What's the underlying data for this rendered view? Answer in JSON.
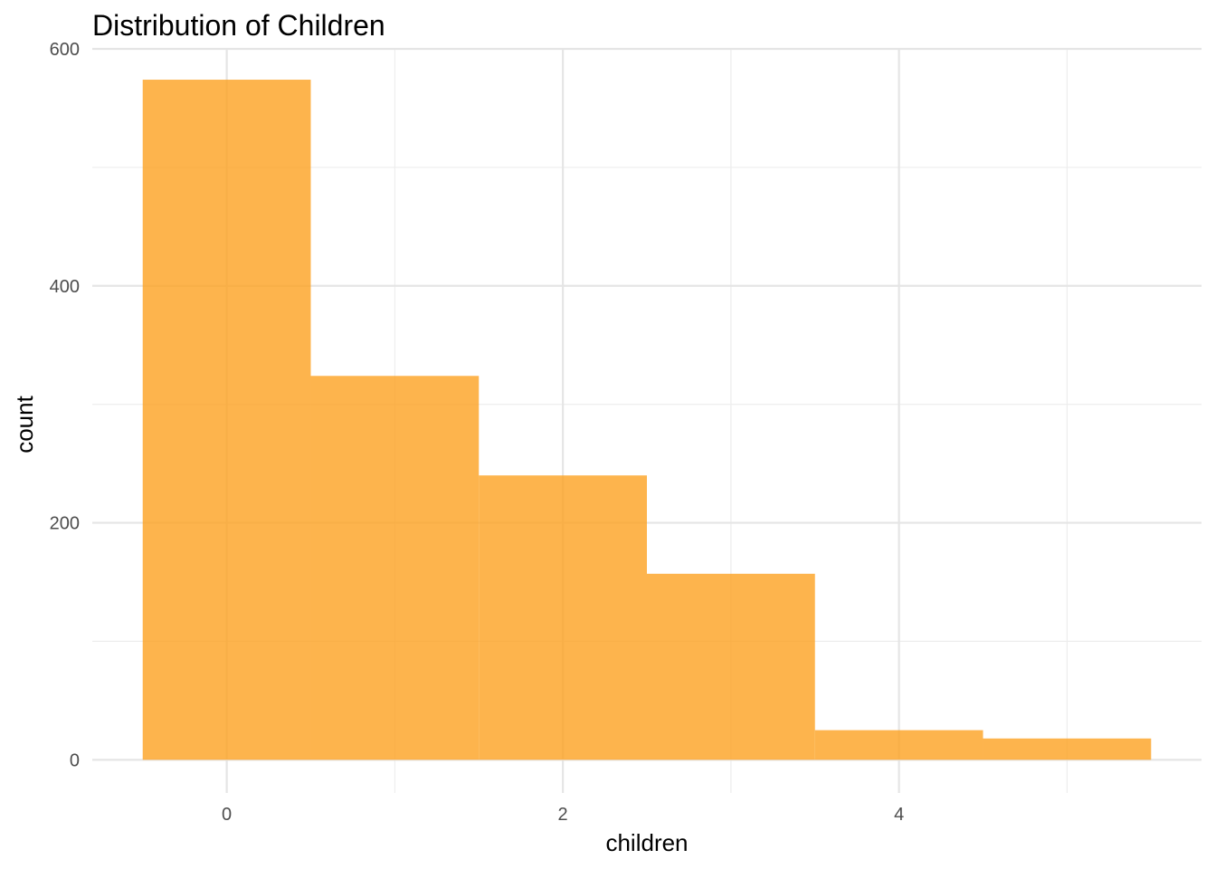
{
  "chart_data": {
    "type": "bar",
    "title": "Distribution of Children",
    "xlabel": "children",
    "ylabel": "count",
    "bin_width": 1,
    "categories": [
      0,
      1,
      2,
      3,
      4,
      5
    ],
    "values": [
      574,
      324,
      240,
      157,
      25,
      18
    ],
    "xlim": [
      -0.8,
      5.8
    ],
    "ylim": [
      -28,
      600
    ],
    "x_ticks": [
      0,
      2,
      4
    ],
    "x_tick_labels": [
      "0",
      "2",
      "4"
    ],
    "x_minor_ticks": [
      1,
      3,
      5
    ],
    "y_ticks": [
      0,
      200,
      400,
      600
    ],
    "y_tick_labels": [
      "0",
      "200",
      "400",
      "600"
    ],
    "y_minor_ticks": [
      100,
      300,
      500
    ],
    "bar_color": "#FCA121",
    "bar_opacity": 0.8,
    "grid": true,
    "legend": "none"
  }
}
